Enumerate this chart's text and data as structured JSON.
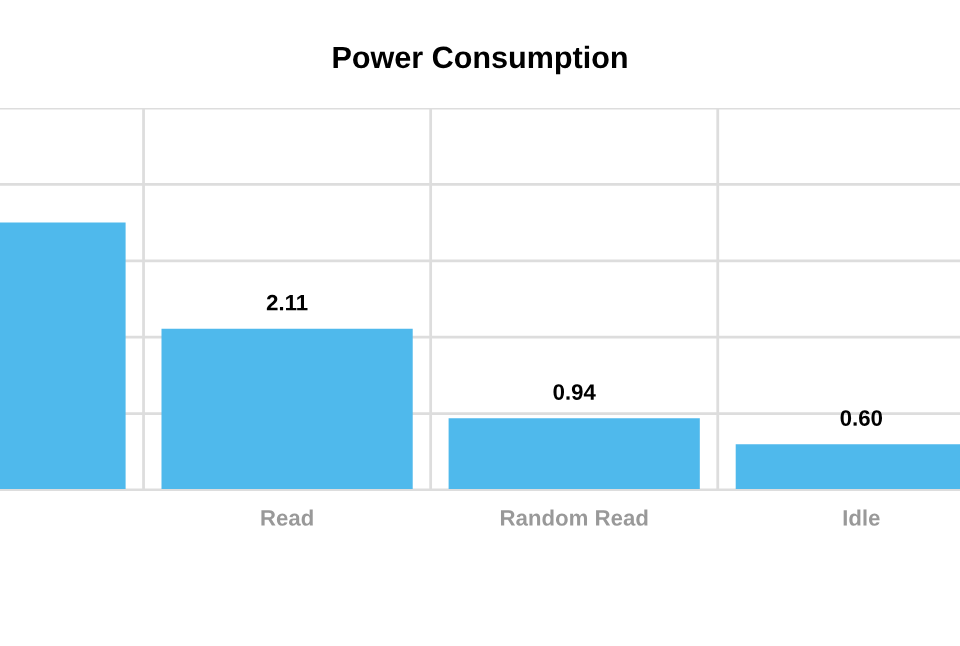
{
  "chart_data": {
    "type": "bar",
    "title": "Power Consumption",
    "categories": [
      null,
      "Read",
      "Random Read",
      "Idle"
    ],
    "series": [
      {
        "color": "#4fb9ec",
        "values": [
          3.5,
          2.11,
          0.94,
          0.6
        ],
        "value_labels": [
          null,
          "2.11",
          "0.94",
          "0.60"
        ]
      }
    ],
    "ylim": [
      0,
      5
    ],
    "yticks": [
      {
        "value": 0,
        "label": null
      },
      {
        "value": 1,
        "label": null
      },
      {
        "value": 2,
        "label": null
      },
      {
        "value": 3,
        "label": null
      },
      {
        "value": 4,
        "label": null
      },
      {
        "value": 5,
        "label": null
      }
    ],
    "tick_labels": "x",
    "grid": true
  }
}
